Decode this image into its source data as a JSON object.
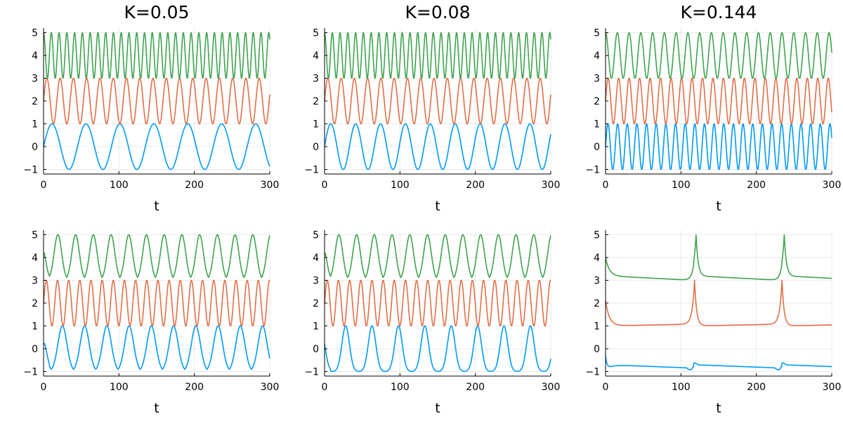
{
  "colors": {
    "series1": "#009AFA",
    "series2": "#E26F46",
    "series3": "#3EA44E"
  },
  "chart_data": [
    {
      "type": "line",
      "title": "K=0.05",
      "xlabel": "t",
      "ylabel": "",
      "xlim": [
        0,
        300
      ],
      "ylim": [
        -1.2,
        5.2
      ],
      "xticks": [
        0,
        100,
        200,
        300
      ],
      "yticks": [
        -1,
        0,
        1,
        2,
        3,
        4,
        5
      ],
      "grid": true,
      "series": [
        {
          "color_key": "series1",
          "gen": {
            "kind": "sin",
            "period": 45,
            "lo": -1,
            "hi": 1,
            "start": 0
          }
        },
        {
          "color_key": "series2",
          "gen": {
            "kind": "sin",
            "period": 17.6,
            "lo": 1,
            "hi": 3,
            "start": 2
          }
        },
        {
          "color_key": "series3",
          "gen": {
            "kind": "sin",
            "period": 10.3,
            "lo": 3,
            "hi": 5,
            "start": 5
          }
        }
      ]
    },
    {
      "type": "line",
      "title": "K=0.08",
      "xlabel": "t",
      "ylabel": "",
      "xlim": [
        0,
        300
      ],
      "ylim": [
        -1.2,
        5.2
      ],
      "xticks": [
        0,
        100,
        200,
        300
      ],
      "yticks": [
        -1,
        0,
        1,
        2,
        3,
        4,
        5
      ],
      "grid": true,
      "series": [
        {
          "color_key": "series1",
          "gen": {
            "kind": "sin",
            "period": 33,
            "lo": -1,
            "hi": 1,
            "start": 0
          }
        },
        {
          "color_key": "series2",
          "gen": {
            "kind": "sin",
            "period": 17.6,
            "lo": 1,
            "hi": 3,
            "start": 2
          }
        },
        {
          "color_key": "series3",
          "gen": {
            "kind": "sin",
            "period": 10.3,
            "lo": 3,
            "hi": 5,
            "start": 5
          }
        }
      ]
    },
    {
      "type": "line",
      "title": "K=0.144",
      "xlabel": "t",
      "ylabel": "",
      "xlim": [
        0,
        300
      ],
      "ylim": [
        -1.2,
        5.2
      ],
      "xticks": [
        0,
        100,
        200,
        300
      ],
      "yticks": [
        -1,
        0,
        1,
        2,
        3,
        4,
        5
      ],
      "grid": true,
      "series": [
        {
          "color_key": "series1",
          "gen": {
            "kind": "sin",
            "period": 12.8,
            "lo": -1,
            "hi": 1,
            "start": 0
          }
        },
        {
          "color_key": "series2",
          "gen": {
            "kind": "sin",
            "period": 13.9,
            "lo": 1,
            "hi": 3,
            "start": 2
          }
        },
        {
          "color_key": "series3",
          "gen": {
            "kind": "sin",
            "period": 15.6,
            "lo": 3,
            "hi": 5,
            "start": 5
          }
        }
      ]
    },
    {
      "type": "line",
      "title": "",
      "xlabel": "t",
      "ylabel": "",
      "xlim": [
        0,
        300
      ],
      "ylim": [
        -1.2,
        5.2
      ],
      "xticks": [
        0,
        100,
        200,
        300
      ],
      "yticks": [
        -1,
        0,
        1,
        2,
        3,
        4,
        5
      ],
      "grid": true,
      "series": [
        {
          "color_key": "series1",
          "gen": {
            "kind": "spike",
            "period": 29.5,
            "offset": 25,
            "lo": -1,
            "hi": 1,
            "width": 6
          }
        },
        {
          "color_key": "series2",
          "gen": {
            "kind": "sin",
            "period": 14.8,
            "lo": 1,
            "hi": 3,
            "start": 2
          }
        },
        {
          "color_key": "series3",
          "gen": {
            "kind": "spike",
            "period": 23.5,
            "offset": 19,
            "lo": 3,
            "hi": 5,
            "width": 5
          }
        }
      ]
    },
    {
      "type": "line",
      "title": "",
      "xlabel": "t",
      "ylabel": "",
      "xlim": [
        0,
        300
      ],
      "ylim": [
        -1.2,
        5.2
      ],
      "xticks": [
        0,
        100,
        200,
        300
      ],
      "yticks": [
        -1,
        0,
        1,
        2,
        3,
        4,
        5
      ],
      "grid": true,
      "series": [
        {
          "color_key": "series1",
          "gen": {
            "kind": "spike",
            "period": 35,
            "offset": 28,
            "lo": -1,
            "hi": 1,
            "width": 5
          }
        },
        {
          "color_key": "series2",
          "gen": {
            "kind": "sin",
            "period": 14.8,
            "lo": 1,
            "hi": 3,
            "start": 2
          }
        },
        {
          "color_key": "series3",
          "gen": {
            "kind": "spike",
            "period": 23.5,
            "offset": 19,
            "lo": 3,
            "hi": 5,
            "width": 5
          }
        }
      ]
    },
    {
      "type": "line",
      "title": "",
      "xlabel": "t",
      "ylabel": "",
      "xlim": [
        0,
        300
      ],
      "ylim": [
        -1.2,
        5.2
      ],
      "xticks": [
        0,
        100,
        200,
        300
      ],
      "yticks": [
        -1,
        0,
        1,
        2,
        3,
        4,
        5
      ],
      "grid": true,
      "series": [
        {
          "color_key": "series1",
          "gen": {
            "kind": "blue_slow"
          }
        },
        {
          "color_key": "series2",
          "gen": {
            "kind": "relax",
            "start": 2.1,
            "base": 1.0,
            "drift": 0.08,
            "spikes": [
              118,
              234
            ],
            "peak": 3.0,
            "width": 3
          }
        },
        {
          "color_key": "series3",
          "gen": {
            "kind": "relax",
            "start": 4.0,
            "base": 3.2,
            "drift": -0.2,
            "spikes": [
              120,
              237
            ],
            "peak": 5.0,
            "width": 3
          }
        }
      ]
    }
  ]
}
